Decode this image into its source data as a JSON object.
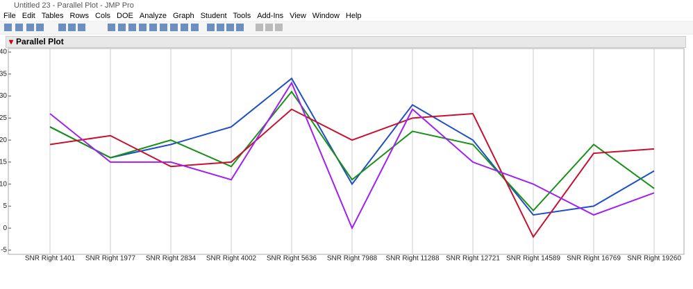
{
  "window": {
    "title": "Untitled 23 - Parallel Plot - JMP Pro"
  },
  "menu": [
    "File",
    "Edit",
    "Tables",
    "Rows",
    "Cols",
    "DOE",
    "Analyze",
    "Graph",
    "Student",
    "Tools",
    "Add-Ins",
    "View",
    "Window",
    "Help"
  ],
  "panel": {
    "title": "Parallel Plot"
  },
  "chart_data": {
    "type": "line",
    "categories": [
      "SNR Right 1401",
      "SNR Right 1977",
      "SNR Right 2834",
      "SNR Right 4002",
      "SNR Right 5636",
      "SNR Right 7988",
      "SNR Right 11288",
      "SNR Right 12721",
      "SNR Right 14589",
      "SNR Right 16769",
      "SNR Right 19260"
    ],
    "series": [
      {
        "color": "#1f4fc8",
        "values": [
          23,
          16,
          19,
          23,
          34,
          10,
          28,
          20,
          3,
          5,
          13
        ]
      },
      {
        "color": "#1a8f1a",
        "values": [
          23,
          16,
          20,
          14,
          31,
          11,
          22,
          19,
          4,
          19,
          9
        ]
      },
      {
        "color": "#c8102e",
        "values": [
          19,
          21,
          14,
          15,
          27,
          20,
          25,
          26,
          -2,
          17,
          18
        ]
      },
      {
        "color": "#a020f0",
        "values": [
          26,
          15,
          15,
          11,
          33,
          0,
          27,
          15,
          10,
          3,
          8
        ]
      }
    ],
    "ylim": [
      -5.8,
      40.8
    ],
    "yticks": [
      -5,
      0,
      5,
      10,
      15,
      20,
      25,
      30,
      35,
      40
    ],
    "grid": false
  }
}
